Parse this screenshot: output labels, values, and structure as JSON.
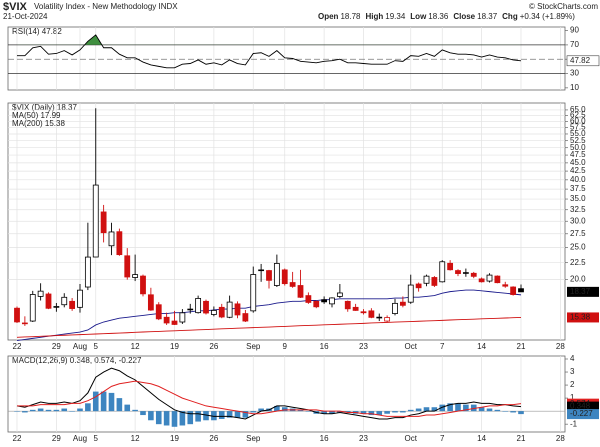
{
  "chart_data": {
    "type": "candlestick",
    "symbol": "$VIX",
    "title": "Volatility Index - New Methodology INDX",
    "date": "21-Oct-2024",
    "quote": [
      {
        "label": "Open",
        "value": "18.78"
      },
      {
        "label": "High",
        "value": "19.34"
      },
      {
        "label": "Low",
        "value": "18.36"
      },
      {
        "label": "Close",
        "value": "18.37"
      },
      {
        "label": "Chg",
        "value": "+0.34 (+1.89%)"
      }
    ],
    "credit": "© StockCharts.com",
    "dates": [
      "2024-07-22",
      "2024-07-23",
      "2024-07-24",
      "2024-07-25",
      "2024-07-26",
      "2024-07-29",
      "2024-07-30",
      "2024-07-31",
      "2024-08-01",
      "2024-08-02",
      "2024-08-05",
      "2024-08-06",
      "2024-08-07",
      "2024-08-08",
      "2024-08-09",
      "2024-08-12",
      "2024-08-13",
      "2024-08-14",
      "2024-08-15",
      "2024-08-16",
      "2024-08-19",
      "2024-08-20",
      "2024-08-21",
      "2024-08-22",
      "2024-08-23",
      "2024-08-26",
      "2024-08-27",
      "2024-08-28",
      "2024-08-29",
      "2024-08-30",
      "2024-09-03",
      "2024-09-04",
      "2024-09-05",
      "2024-09-06",
      "2024-09-09",
      "2024-09-10",
      "2024-09-11",
      "2024-09-12",
      "2024-09-13",
      "2024-09-16",
      "2024-09-17",
      "2024-09-18",
      "2024-09-19",
      "2024-09-20",
      "2024-09-23",
      "2024-09-24",
      "2024-09-25",
      "2024-09-26",
      "2024-09-27",
      "2024-09-30",
      "2024-10-01",
      "2024-10-02",
      "2024-10-03",
      "2024-10-04",
      "2024-10-07",
      "2024-10-08",
      "2024-10-09",
      "2024-10-10",
      "2024-10-11",
      "2024-10-14",
      "2024-10-15",
      "2024-10-16",
      "2024-10-17",
      "2024-10-18",
      "2024-10-21"
    ],
    "xticks": [
      {
        "value": "2024-07-22",
        "label": "22"
      },
      {
        "value": "2024-07-29",
        "label": "29"
      },
      {
        "value": "2024-08-01",
        "label": "Aug"
      },
      {
        "value": "2024-08-05",
        "label": "5"
      },
      {
        "value": "2024-08-12",
        "label": "12"
      },
      {
        "value": "2024-08-19",
        "label": "19"
      },
      {
        "value": "2024-08-26",
        "label": "26"
      },
      {
        "value": "2024-09-03",
        "label": "Sep"
      },
      {
        "value": "2024-09-09",
        "label": "9"
      },
      {
        "value": "2024-09-16",
        "label": "16"
      },
      {
        "value": "2024-09-23",
        "label": "23"
      },
      {
        "value": "2024-10-01",
        "label": "Oct"
      },
      {
        "value": "2024-10-07",
        "label": "7"
      },
      {
        "value": "2024-10-14",
        "label": "14"
      },
      {
        "value": "2024-10-21",
        "label": "21"
      },
      {
        "value": "2024-10-28",
        "label": "28"
      }
    ],
    "price": {
      "legend": "$VIX (Daily) 18.37",
      "log_scale": true,
      "ylim": [
        13.15,
        68.2
      ],
      "yticks": [
        {
          "value": 20,
          "label": "20.0"
        },
        {
          "value": 22.5,
          "label": "22.5"
        },
        {
          "value": 25,
          "label": "25.0"
        },
        {
          "value": 27.5,
          "label": "27.5"
        },
        {
          "value": 30,
          "label": "30.0"
        },
        {
          "value": 32.5,
          "label": "32.5"
        },
        {
          "value": 35,
          "label": "35.0"
        },
        {
          "value": 37.5,
          "label": "37.5"
        },
        {
          "value": 40,
          "label": "40.0"
        },
        {
          "value": 42.5,
          "label": "42.5"
        },
        {
          "value": 45,
          "label": "45.0"
        },
        {
          "value": 47.5,
          "label": "47.5"
        },
        {
          "value": 50,
          "label": "50.0"
        },
        {
          "value": 52.5,
          "label": "52.5"
        },
        {
          "value": 55,
          "label": "55.0"
        },
        {
          "value": 57.5,
          "label": "57.5"
        },
        {
          "value": 60,
          "label": "60.0"
        },
        {
          "value": 62.5,
          "label": "62.5"
        },
        {
          "value": 65,
          "label": "65.0"
        }
      ],
      "up_color": "#000000",
      "down_color": "#d01010",
      "open": [
        16.4,
        14.8,
        15.0,
        17.8,
        18.1,
        16.5,
        16.8,
        17.2,
        16.5,
        19.0,
        23.4,
        32.0,
        25.3,
        27.9,
        23.6,
        20.3,
        20.5,
        18.0,
        16.8,
        15.4,
        15.0,
        14.9,
        16.3,
        15.9,
        17.2,
        15.7,
        16.5,
        15.4,
        16.9,
        15.8,
        16.1,
        21.4,
        21.3,
        19.2,
        21.4,
        19.6,
        19.2,
        17.9,
        17.2,
        17.4,
        16.9,
        17.8,
        17.2,
        16.5,
        16.0,
        16.1,
        15.4,
        15.0,
        15.8,
        17.1,
        17.1,
        19.4,
        19.5,
        20.3,
        19.7,
        22.4,
        21.3,
        21.0,
        20.9,
        20.1,
        19.8,
        20.5,
        19.3,
        19.0,
        18.78
      ],
      "high": [
        16.6,
        15.5,
        18.5,
        19.5,
        18.3,
        17.0,
        18.2,
        17.6,
        19.4,
        29.7,
        65.73,
        33.6,
        29.7,
        28.5,
        24.9,
        23.8,
        20.7,
        18.9,
        17.1,
        15.9,
        16.1,
        16.3,
        16.9,
        17.9,
        17.4,
        16.6,
        16.9,
        17.9,
        17.2,
        16.2,
        21.9,
        22.3,
        21.4,
        23.8,
        21.6,
        21.1,
        21.4,
        18.3,
        17.3,
        17.8,
        17.7,
        19.4,
        17.3,
        16.9,
        16.3,
        16.4,
        15.8,
        15.6,
        17.5,
        17.8,
        20.7,
        19.6,
        20.7,
        20.5,
        22.9,
        22.9,
        21.5,
        21.6,
        21.1,
        20.3,
        20.9,
        20.6,
        19.7,
        19.1,
        19.34
      ],
      "low": [
        14.8,
        14.5,
        14.9,
        17.3,
        16.3,
        16.0,
        16.5,
        16.1,
        15.9,
        18.6,
        23.4,
        25.9,
        23.7,
        23.6,
        20.0,
        19.8,
        17.8,
        16.1,
        15.1,
        14.6,
        14.6,
        14.7,
        15.8,
        15.8,
        15.7,
        15.5,
        15.3,
        15.3,
        15.3,
        14.9,
        15.9,
        19.7,
        18.8,
        19.0,
        19.2,
        18.9,
        17.6,
        16.9,
        16.4,
        16.9,
        16.5,
        17.6,
        16.0,
        16.1,
        15.7,
        15.3,
        15.0,
        14.9,
        15.6,
        16.5,
        16.9,
        18.4,
        19.1,
        19.0,
        19.6,
        21.3,
        20.5,
        20.4,
        20.2,
        19.6,
        19.6,
        19.5,
        18.9,
        17.9,
        18.36
      ],
      "close": [
        14.91,
        14.72,
        18.04,
        18.46,
        16.39,
        16.6,
        17.69,
        16.36,
        18.59,
        23.39,
        38.57,
        27.71,
        27.85,
        23.79,
        20.37,
        20.71,
        18.12,
        16.19,
        15.23,
        14.8,
        14.65,
        15.88,
        16.27,
        17.55,
        15.86,
        16.15,
        15.43,
        17.11,
        15.65,
        15.0,
        20.72,
        21.32,
        19.9,
        22.38,
        19.45,
        19.08,
        17.69,
        17.07,
        16.56,
        17.14,
        17.61,
        18.23,
        16.33,
        16.15,
        15.89,
        15.39,
        15.41,
        15.37,
        16.96,
        16.73,
        19.26,
        18.9,
        20.49,
        19.21,
        22.64,
        21.42,
        20.86,
        20.93,
        20.46,
        19.7,
        20.64,
        19.58,
        19.11,
        18.03,
        18.37
      ],
      "series": [
        {
          "name": "MA(50) 17.99",
          "color": "#1a1a8c",
          "values": [
            13.1,
            13.2,
            13.3,
            13.4,
            13.5,
            13.6,
            13.7,
            13.8,
            13.9,
            14.1,
            14.6,
            14.9,
            15.1,
            15.3,
            15.4,
            15.5,
            15.6,
            15.7,
            15.8,
            15.8,
            15.9,
            15.9,
            16.0,
            16.1,
            16.1,
            16.2,
            16.3,
            16.3,
            16.4,
            16.4,
            16.6,
            16.7,
            16.8,
            17.0,
            17.1,
            17.2,
            17.2,
            17.3,
            17.3,
            17.4,
            17.4,
            17.5,
            17.5,
            17.5,
            17.5,
            17.5,
            17.5,
            17.5,
            17.6,
            17.6,
            17.7,
            17.7,
            17.8,
            17.9,
            18.2,
            18.4,
            18.5,
            18.6,
            18.6,
            18.5,
            18.4,
            18.3,
            18.2,
            18.1,
            17.99
          ]
        },
        {
          "name": "MA(200) 15.38",
          "color": "#d01010",
          "values": [
            13.4,
            13.43,
            13.46,
            13.49,
            13.52,
            13.56,
            13.59,
            13.62,
            13.65,
            13.68,
            13.71,
            13.74,
            13.77,
            13.8,
            13.83,
            13.87,
            13.9,
            13.93,
            13.96,
            13.99,
            14.02,
            14.05,
            14.08,
            14.11,
            14.14,
            14.18,
            14.21,
            14.24,
            14.27,
            14.3,
            14.33,
            14.36,
            14.39,
            14.42,
            14.45,
            14.49,
            14.52,
            14.55,
            14.58,
            14.61,
            14.64,
            14.67,
            14.7,
            14.73,
            14.76,
            14.8,
            14.83,
            14.86,
            14.89,
            14.92,
            14.95,
            14.98,
            15.01,
            15.04,
            15.07,
            15.11,
            15.14,
            15.17,
            15.2,
            15.23,
            15.26,
            15.29,
            15.32,
            15.35,
            15.38
          ]
        }
      ],
      "tags": [
        {
          "value": 18.37,
          "label": "18.37",
          "color": "#000000"
        },
        {
          "value": 15.38,
          "label": "15.38",
          "color": "#d01010"
        }
      ]
    },
    "rsi": {
      "legend": "RSI(14) 47.82",
      "ylim": [
        7,
        95
      ],
      "yticks": [
        90,
        70,
        50,
        30,
        10
      ],
      "levels": [
        70,
        30
      ],
      "midline": 50,
      "color": "#000000",
      "fill_color": "#3f8f3f",
      "values": [
        55,
        55,
        66,
        68,
        57,
        58,
        62,
        56,
        63,
        75,
        84,
        66,
        66,
        57,
        52,
        52,
        46,
        42,
        40,
        38,
        38,
        43,
        44,
        49,
        43,
        45,
        42,
        49,
        44,
        42,
        58,
        59,
        54,
        62,
        52,
        51,
        47,
        46,
        45,
        47,
        48,
        50,
        45,
        45,
        44,
        43,
        43,
        43,
        48,
        47,
        55,
        54,
        58,
        54,
        63,
        59,
        57,
        57,
        56,
        53,
        56,
        53,
        52,
        49,
        47.82
      ],
      "tags": [
        {
          "value": 47.82,
          "label": "47.82"
        }
      ]
    },
    "macd": {
      "legend": "MACD(12,26,9) 0.348, 0.574, -0.227",
      "ylim": [
        -1.6,
        4.23
      ],
      "yticks": [
        4,
        3,
        2,
        1,
        -1
      ],
      "series": [
        {
          "name": "MACD",
          "color": "#000000",
          "values": [
            0.4,
            0.3,
            0.5,
            0.7,
            0.6,
            0.6,
            0.7,
            0.6,
            0.8,
            1.4,
            2.6,
            3.0,
            3.3,
            3.1,
            2.7,
            2.4,
            1.9,
            1.4,
            0.9,
            0.5,
            0.1,
            -0.1,
            -0.2,
            -0.2,
            -0.3,
            -0.4,
            -0.4,
            -0.4,
            -0.5,
            -0.6,
            -0.3,
            0.0,
            0.1,
            0.4,
            0.4,
            0.3,
            0.2,
            0.1,
            -0.1,
            -0.2,
            -0.2,
            -0.1,
            -0.2,
            -0.3,
            -0.4,
            -0.5,
            -0.6,
            -0.6,
            -0.5,
            -0.5,
            -0.3,
            -0.2,
            0.0,
            0.0,
            0.3,
            0.5,
            0.6,
            0.6,
            0.7,
            0.6,
            0.6,
            0.5,
            0.5,
            0.4,
            0.348
          ]
        },
        {
          "name": "Signal",
          "color": "#e02020",
          "values": [
            0.4,
            0.4,
            0.4,
            0.5,
            0.5,
            0.5,
            0.5,
            0.6,
            0.6,
            0.8,
            1.1,
            1.5,
            1.9,
            2.1,
            2.2,
            2.3,
            2.2,
            2.1,
            1.9,
            1.6,
            1.3,
            1.0,
            0.8,
            0.6,
            0.4,
            0.3,
            0.2,
            0.1,
            0.0,
            -0.1,
            -0.2,
            -0.2,
            -0.1,
            0.0,
            0.1,
            0.1,
            0.1,
            0.1,
            0.1,
            0.0,
            0.0,
            0.0,
            -0.1,
            -0.1,
            -0.2,
            -0.2,
            -0.3,
            -0.4,
            -0.4,
            -0.4,
            -0.4,
            -0.4,
            -0.3,
            -0.3,
            -0.2,
            -0.1,
            0.0,
            0.1,
            0.2,
            0.3,
            0.4,
            0.4,
            0.5,
            0.5,
            0.574
          ]
        }
      ],
      "histogram": {
        "color": "#3d85c0",
        "values": [
          0,
          -0.1,
          0.1,
          0.2,
          0.1,
          0.1,
          0.2,
          0.0,
          0.2,
          0.6,
          1.5,
          1.5,
          1.4,
          1.0,
          0.5,
          0.1,
          -0.3,
          -0.7,
          -1.0,
          -1.1,
          -1.2,
          -1.1,
          -1.0,
          -0.8,
          -0.7,
          -0.7,
          -0.6,
          -0.5,
          -0.5,
          -0.5,
          -0.1,
          0.2,
          0.2,
          0.4,
          0.3,
          0.2,
          0.1,
          0.0,
          -0.2,
          -0.2,
          -0.2,
          -0.1,
          -0.1,
          -0.2,
          -0.2,
          -0.3,
          -0.3,
          -0.2,
          -0.1,
          -0.1,
          0.1,
          0.2,
          0.3,
          0.3,
          0.5,
          0.6,
          0.6,
          0.5,
          0.5,
          0.3,
          0.2,
          0.1,
          0.0,
          -0.1,
          -0.227
        ]
      },
      "tags": [
        {
          "value": 0.574,
          "label": "0.574",
          "color": "#e02020"
        },
        {
          "value": 0.348,
          "label": "0.348",
          "color": "#000000"
        },
        {
          "value": -0.227,
          "label": "-0.227",
          "color": "#3d85c0"
        }
      ]
    },
    "grid": true
  }
}
